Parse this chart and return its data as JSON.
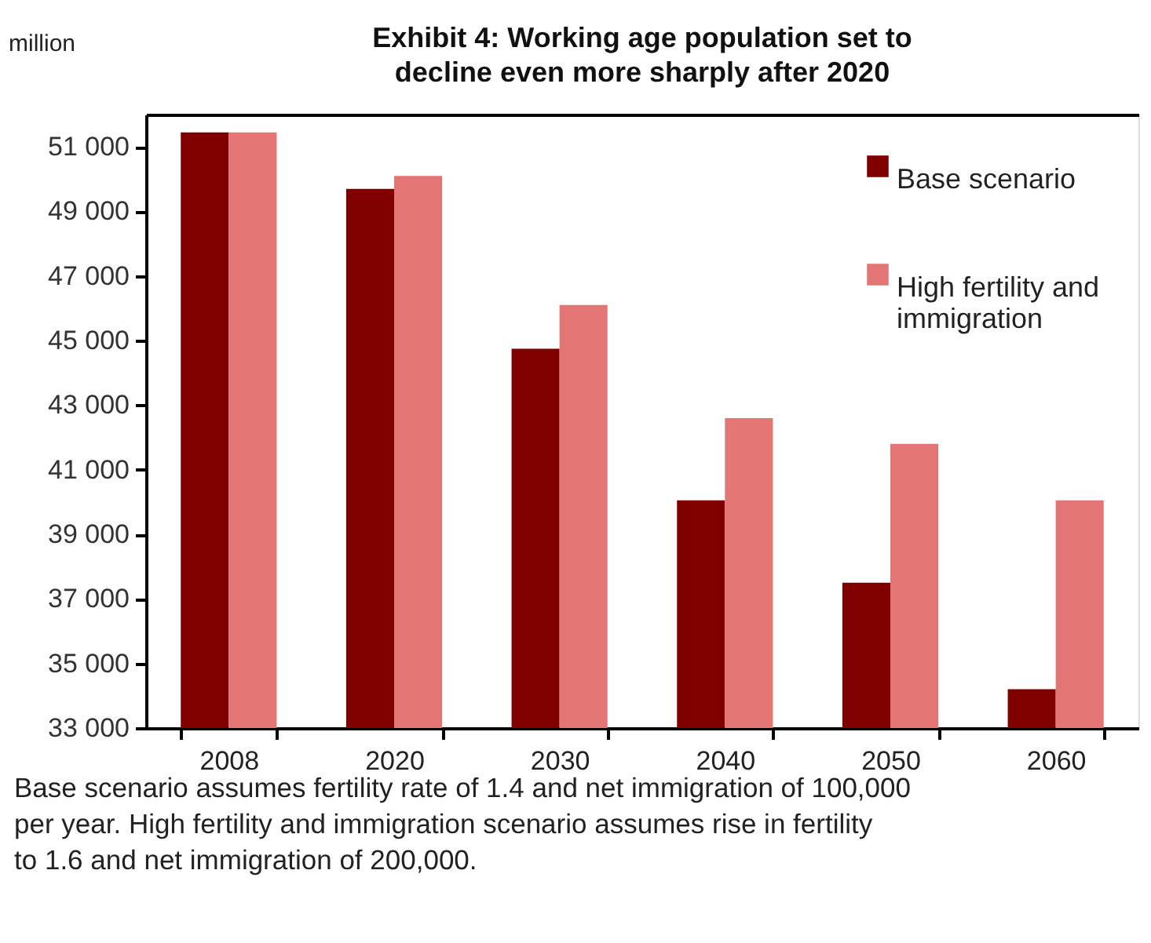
{
  "chart_data": {
    "type": "bar",
    "title": "Exhibit 4: Working age population set to decline even more sharply after 2020",
    "ylabel": "million",
    "categories": [
      "2008",
      "2020",
      "2030",
      "2040",
      "2050",
      "2060"
    ],
    "series": [
      {
        "name": "Base scenario",
        "color": "#800000",
        "values": [
          51450,
          49700,
          44750,
          40050,
          37500,
          34200
        ]
      },
      {
        "name": "High fertility and immigration",
        "color": "#e37575",
        "values": [
          51450,
          50100,
          46100,
          42600,
          41800,
          40050
        ]
      }
    ],
    "ylim": [
      33000,
      52000
    ],
    "yticks": [
      {
        "value": 33000,
        "label": "33 000"
      },
      {
        "value": 35000,
        "label": "35 000"
      },
      {
        "value": 37000,
        "label": "37 000"
      },
      {
        "value": 39000,
        "label": "39 000"
      },
      {
        "value": 41000,
        "label": "41 000"
      },
      {
        "value": 43000,
        "label": "43 000"
      },
      {
        "value": 45000,
        "label": "45 000"
      },
      {
        "value": 47000,
        "label": "47 000"
      },
      {
        "value": 49000,
        "label": "49 000"
      },
      {
        "value": 51000,
        "label": "51 000"
      }
    ],
    "grid": false,
    "legend": "top right",
    "annotations": [
      "Base scenario assumes fertility rate of 1.4 and net immigration of 100,000 per year. High fertility and immigration scenario assumes rise in fertility to 1.6 and net immigration of 200,000."
    ]
  }
}
